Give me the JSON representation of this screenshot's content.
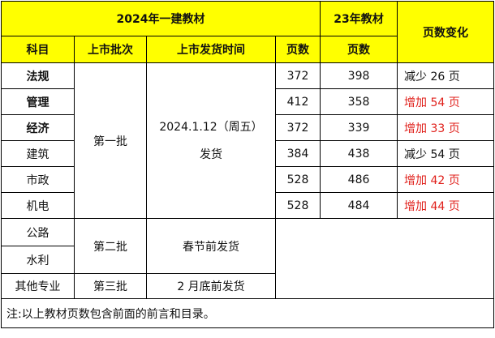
{
  "header": {
    "edition_2024": "2024年一建教材",
    "edition_23": "23年教材",
    "page_change": "页数变化",
    "subject": "科目",
    "batch": "上市批次",
    "release_time": "上市发货时间",
    "pages": "页数",
    "pages_23": "页数"
  },
  "rows": [
    {
      "subject": "法规",
      "pages": "372",
      "pages_23": "398",
      "change": "减少 26 页",
      "bold": true,
      "increase": false
    },
    {
      "subject": "管理",
      "pages": "412",
      "pages_23": "358",
      "change": "增加 54 页",
      "bold": true,
      "increase": true
    },
    {
      "subject": "经济",
      "pages": "372",
      "pages_23": "339",
      "change": "增加 33 页",
      "bold": true,
      "increase": true
    },
    {
      "subject": "建筑",
      "pages": "384",
      "pages_23": "438",
      "change": "减少 54 页",
      "bold": false,
      "increase": false
    },
    {
      "subject": "市政",
      "pages": "528",
      "pages_23": "486",
      "change": "增加 42 页",
      "bold": false,
      "increase": true
    },
    {
      "subject": "机电",
      "pages": "528",
      "pages_23": "484",
      "change": "增加 44 页",
      "bold": false,
      "increase": true
    }
  ],
  "batch1": {
    "label": "第一批",
    "release_date": "2024.1.12（周五）",
    "release_note": "发货"
  },
  "batch2": {
    "subjects": [
      "公路",
      "水利"
    ],
    "label": "第二批",
    "release": "春节前发货"
  },
  "batch3": {
    "subject": "其他专业",
    "label": "第三批",
    "release": "2 月底前发货"
  },
  "note": "注:以上教材页数包含前面的前言和目录。",
  "colors": {
    "header_bg": "#FFFF00",
    "increase_text": "#E0201B",
    "border": "#000000"
  }
}
